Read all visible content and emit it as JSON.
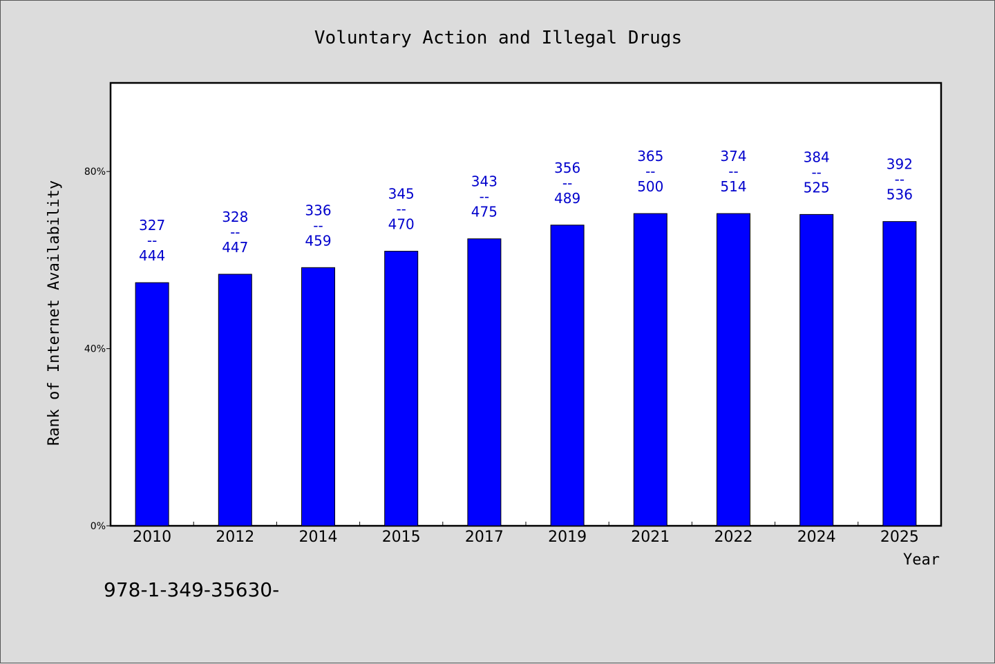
{
  "chart_data": {
    "type": "bar",
    "title": "Voluntary Action and Illegal Drugs",
    "xlabel": "Year",
    "ylabel": "Rank of Internet Availability",
    "categories": [
      "2010",
      "2012",
      "2014",
      "2015",
      "2017",
      "2019",
      "2021",
      "2022",
      "2024",
      "2025"
    ],
    "values": [
      54.9,
      56.8,
      58.3,
      62.0,
      64.8,
      67.9,
      70.5,
      70.5,
      70.3,
      68.7
    ],
    "value_labels": [
      {
        "top": "327",
        "sep": "--",
        "bottom": "444"
      },
      {
        "top": "328",
        "sep": "--",
        "bottom": "447"
      },
      {
        "top": "336",
        "sep": "--",
        "bottom": "459"
      },
      {
        "top": "345",
        "sep": "--",
        "bottom": "470"
      },
      {
        "top": "343",
        "sep": "--",
        "bottom": "475"
      },
      {
        "top": "356",
        "sep": "--",
        "bottom": "489"
      },
      {
        "top": "365",
        "sep": "--",
        "bottom": "500"
      },
      {
        "top": "374",
        "sep": "--",
        "bottom": "514"
      },
      {
        "top": "384",
        "sep": "--",
        "bottom": "525"
      },
      {
        "top": "392",
        "sep": "--",
        "bottom": "536"
      }
    ],
    "ylim": [
      0,
      100
    ],
    "yticks": [
      0,
      40,
      80
    ],
    "ytick_labels": [
      "0%",
      "40%",
      "80%"
    ],
    "grid": false,
    "bar_color": "#0000ff",
    "label_color": "#0000cc"
  },
  "footer_text": "978-1-349-35630-"
}
